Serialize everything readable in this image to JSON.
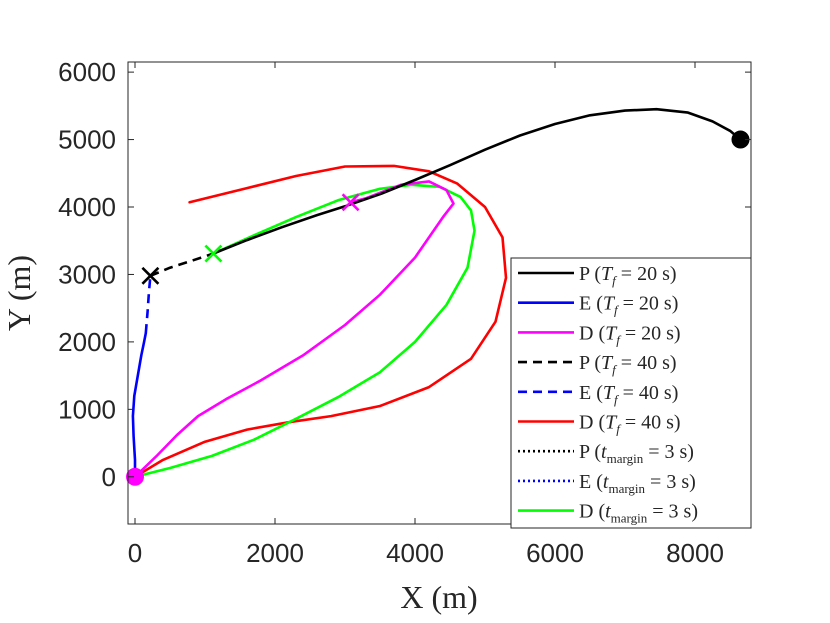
{
  "chart_data": {
    "type": "line",
    "xlabel": "X (m)",
    "ylabel": "Y (m)",
    "xlim": [
      -100,
      8800
    ],
    "ylim": [
      -700,
      6150
    ],
    "xticks": [
      0,
      2000,
      4000,
      6000,
      8000
    ],
    "yticks": [
      0,
      1000,
      2000,
      3000,
      4000,
      5000,
      6000
    ],
    "xtick_labels": [
      "0",
      "2000",
      "4000",
      "6000",
      "8000"
    ],
    "ytick_labels": [
      "0",
      "1000",
      "2000",
      "3000",
      "4000",
      "5000",
      "6000"
    ],
    "grid": false,
    "legend_position": "lower-right",
    "series": [
      {
        "name": "P (T_f = 20 s)",
        "legend": {
          "base": "P",
          "sym": "T",
          "sub": "f",
          "rest": " = 20 s)"
        },
        "color": "#000000",
        "dash": "solid",
        "x": [
          1120,
          1600,
          2100,
          2600,
          3000,
          3500,
          4000,
          4500,
          5000,
          5500,
          6000,
          6500,
          7000,
          7450,
          7900,
          8250,
          8500,
          8650
        ],
        "y": [
          3310,
          3510,
          3700,
          3880,
          4010,
          4190,
          4400,
          4620,
          4850,
          5060,
          5230,
          5360,
          5430,
          5450,
          5400,
          5270,
          5130,
          5000
        ]
      },
      {
        "name": "E (T_f = 20 s)",
        "legend": {
          "base": "E",
          "sym": "T",
          "sub": "f",
          "rest": " = 20 s)"
        },
        "color": "#0000ff",
        "dash": "solid",
        "x": [
          0,
          0,
          -20,
          -30,
          -10,
          40,
          90,
          130,
          155
        ],
        "y": [
          0,
          250,
          600,
          900,
          1200,
          1500,
          1800,
          2000,
          2130
        ]
      },
      {
        "name": "D (T_f = 20 s)",
        "legend": {
          "base": "D",
          "sym": "T",
          "sub": "f",
          "rest": " = 20 s)"
        },
        "color": "#ff00ff",
        "dash": "solid",
        "x": [
          0,
          300,
          600,
          900,
          1300,
          1800,
          2400,
          3000,
          3500,
          4000,
          4400,
          4550,
          4450,
          4200,
          3800,
          3500,
          3300,
          3080
        ],
        "y": [
          0,
          300,
          620,
          900,
          1150,
          1430,
          1800,
          2250,
          2700,
          3250,
          3850,
          4050,
          4250,
          4380,
          4330,
          4210,
          4130,
          4070
        ]
      },
      {
        "name": "P (T_f = 40 s)",
        "legend": {
          "base": "P",
          "sym": "T",
          "sub": "f",
          "rest": " = 40 s)"
        },
        "color": "#000000",
        "dash": "dash",
        "x": [
          220,
          500,
          800,
          1120
        ],
        "y": [
          2980,
          3100,
          3200,
          3310
        ]
      },
      {
        "name": "E (T_f = 40 s)",
        "legend": {
          "base": "E",
          "sym": "T",
          "sub": "f",
          "rest": " = 40 s)"
        },
        "color": "#0000ff",
        "dash": "dash",
        "x": [
          155,
          180,
          200,
          220
        ],
        "y": [
          2130,
          2450,
          2750,
          2980
        ]
      },
      {
        "name": "D (T_f = 40 s)",
        "legend": {
          "base": "D",
          "sym": "T",
          "sub": "f",
          "rest": " = 40 s)"
        },
        "color": "#ff0000",
        "dash": "solid",
        "x": [
          0,
          400,
          1000,
          1600,
          2200,
          2800,
          3500,
          4200,
          4800,
          5150,
          5300,
          5250,
          5000,
          4600,
          4200,
          3700,
          3000,
          2300,
          1600,
          780
        ],
        "y": [
          0,
          250,
          520,
          700,
          810,
          900,
          1050,
          1330,
          1750,
          2300,
          2950,
          3550,
          4000,
          4350,
          4530,
          4610,
          4600,
          4460,
          4280,
          4070
        ]
      },
      {
        "name": "P (t_margin = 3 s)",
        "legend": {
          "base": "P",
          "sym": "t",
          "sub": "margin",
          "rest": " = 3 s)"
        },
        "color": "#000000",
        "dash": "dot",
        "x": [],
        "y": []
      },
      {
        "name": "E (t_margin = 3 s)",
        "legend": {
          "base": "E",
          "sym": "t",
          "sub": "margin",
          "rest": " = 3 s)"
        },
        "color": "#0000ff",
        "dash": "dot",
        "x": [],
        "y": []
      },
      {
        "name": "D (t_margin = 3 s)",
        "legend": {
          "base": "D",
          "sym": "t",
          "sub": "margin",
          "rest": " = 3 s)"
        },
        "color": "#00ff00",
        "dash": "solid",
        "x": [
          0,
          500,
          1100,
          1700,
          2300,
          2900,
          3500,
          4000,
          4450,
          4750,
          4850,
          4800,
          4650,
          4350,
          3950,
          3500,
          2900,
          2300,
          1700,
          1120
        ],
        "y": [
          0,
          130,
          310,
          550,
          860,
          1180,
          1550,
          2000,
          2550,
          3100,
          3650,
          3950,
          4150,
          4300,
          4330,
          4270,
          4100,
          3850,
          3580,
          3310
        ]
      }
    ],
    "markers": [
      {
        "name": "pursuer-start",
        "type": "dot",
        "x": 8650,
        "y": 5000,
        "color": "#000000"
      },
      {
        "name": "evader-start",
        "type": "dot",
        "x": 0,
        "y": 0,
        "color": "#ff00ff"
      },
      {
        "name": "capture-black",
        "type": "x",
        "x": 220,
        "y": 2980,
        "color": "#000000"
      },
      {
        "name": "capture-green",
        "type": "x",
        "x": 1120,
        "y": 3310,
        "color": "#00ff00"
      },
      {
        "name": "capture-magenta",
        "type": "x",
        "x": 3080,
        "y": 4070,
        "color": "#ff00ff"
      }
    ]
  }
}
